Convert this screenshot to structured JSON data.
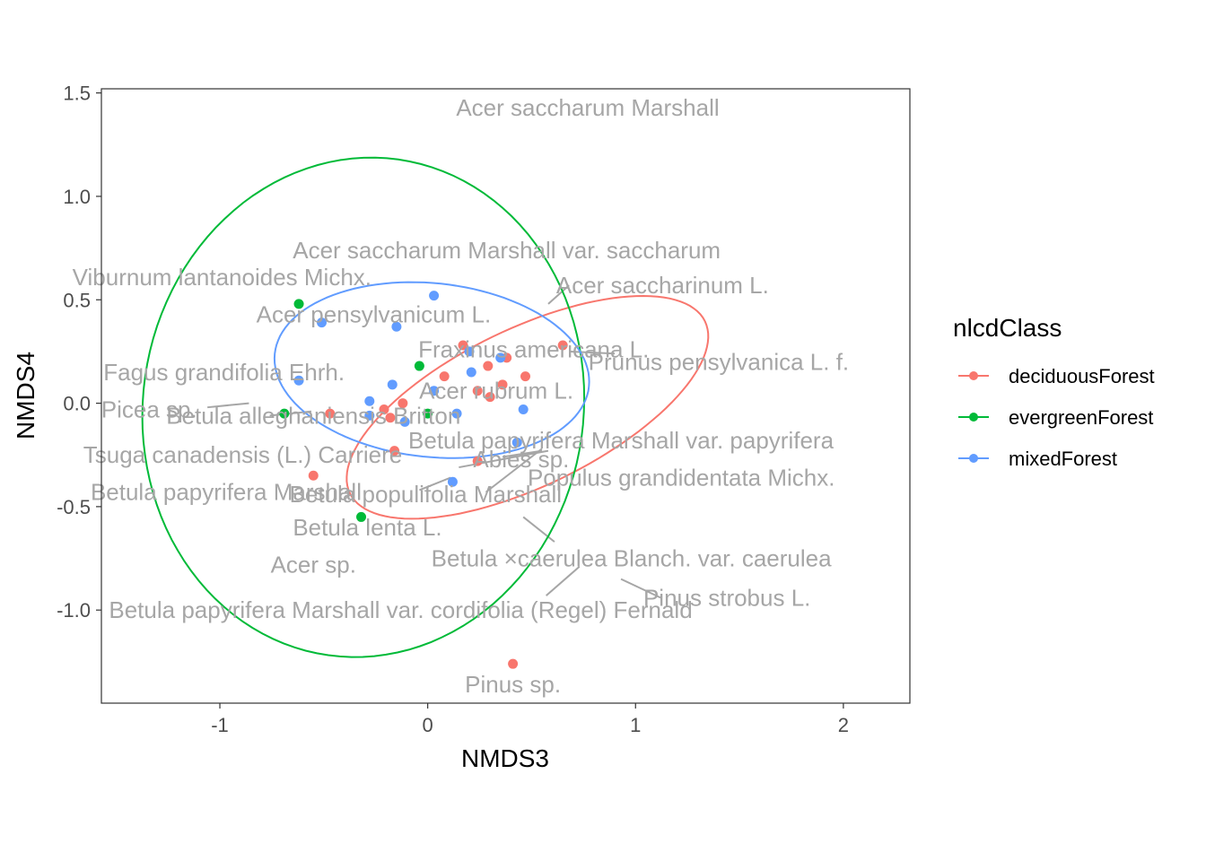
{
  "chart_data": {
    "type": "scatter",
    "xlabel": "NMDS3",
    "ylabel": "NMDS4",
    "xlim": [
      -1.57,
      2.32
    ],
    "ylim": [
      -1.45,
      1.52
    ],
    "x_ticks": [
      -1,
      0,
      1,
      2
    ],
    "x_tick_labels": [
      "-1",
      "0",
      "1",
      "2"
    ],
    "y_ticks": [
      -1.0,
      -0.5,
      0.0,
      0.5,
      1.0,
      1.5
    ],
    "y_tick_labels": [
      "-1.0",
      "-0.5",
      "0.0",
      "0.5",
      "1.0",
      "1.5"
    ],
    "grid": false,
    "legend": {
      "title": "nlcdClass",
      "position": "right",
      "entries": [
        {
          "label": "deciduousForest",
          "color": "#F8766D"
        },
        {
          "label": "evergreenForest",
          "color": "#00BA38"
        },
        {
          "label": "mixedForest",
          "color": "#619CFF"
        }
      ]
    },
    "series": [
      {
        "name": "deciduousForest",
        "color": "#F8766D",
        "points": [
          [
            0.17,
            0.28
          ],
          [
            0.38,
            0.22
          ],
          [
            0.47,
            0.13
          ],
          [
            0.29,
            0.18
          ],
          [
            0.08,
            0.13
          ],
          [
            0.36,
            0.09
          ],
          [
            0.24,
            0.06
          ],
          [
            0.3,
            0.03
          ],
          [
            -0.12,
            0.0
          ],
          [
            -0.21,
            -0.03
          ],
          [
            -0.18,
            -0.07
          ],
          [
            -0.47,
            -0.05
          ],
          [
            -0.16,
            -0.23
          ],
          [
            0.24,
            -0.28
          ],
          [
            -0.55,
            -0.35
          ],
          [
            0.41,
            -1.26
          ],
          [
            0.65,
            0.28
          ]
        ],
        "ellipse": {
          "cx": 0.48,
          "cy": -0.02,
          "rx": 0.95,
          "ry": 0.38,
          "angle_deg": 26
        }
      },
      {
        "name": "evergreenForest",
        "color": "#00BA38",
        "points": [
          [
            -0.62,
            0.48
          ],
          [
            -0.04,
            0.18
          ],
          [
            0.0,
            -0.05
          ],
          [
            -0.69,
            -0.05
          ],
          [
            -0.32,
            -0.55
          ]
        ],
        "ellipse": {
          "cx": -0.31,
          "cy": -0.02,
          "rx": 1.06,
          "ry": 1.21,
          "angle_deg": -8
        }
      },
      {
        "name": "mixedForest",
        "color": "#619CFF",
        "points": [
          [
            0.03,
            0.52
          ],
          [
            -0.51,
            0.39
          ],
          [
            -0.15,
            0.37
          ],
          [
            0.2,
            0.25
          ],
          [
            0.35,
            0.22
          ],
          [
            0.21,
            0.15
          ],
          [
            -0.62,
            0.11
          ],
          [
            -0.17,
            0.09
          ],
          [
            0.03,
            0.06
          ],
          [
            -0.28,
            0.01
          ],
          [
            -0.28,
            -0.06
          ],
          [
            -0.11,
            -0.09
          ],
          [
            0.14,
            -0.05
          ],
          [
            0.46,
            -0.03
          ],
          [
            0.43,
            -0.19
          ],
          [
            0.12,
            -0.38
          ]
        ],
        "ellipse": {
          "cx": 0.02,
          "cy": 0.16,
          "rx": 0.76,
          "ry": 0.42,
          "angle_deg": -6
        }
      }
    ],
    "annotations": [
      {
        "text": "Acer saccharum Marshall",
        "x": 0.77,
        "y": 1.43
      },
      {
        "text": "Acer saccharum Marshall var. saccharum",
        "x": 0.38,
        "y": 0.74
      },
      {
        "text": "Viburnum lantanoides Michx.",
        "x": -0.99,
        "y": 0.61
      },
      {
        "text": "Acer saccharinum L.",
        "x": 1.13,
        "y": 0.57
      },
      {
        "text": "Acer pensylvanicum L.",
        "x": -0.26,
        "y": 0.43
      },
      {
        "text": "Fraxinus americana L.",
        "x": 0.51,
        "y": 0.26
      },
      {
        "text": "Prunus pensylvanica L. f.",
        "x": 1.4,
        "y": 0.2
      },
      {
        "text": "Fagus grandifolia Ehrh.",
        "x": -0.98,
        "y": 0.15
      },
      {
        "text": "Acer rubrum L.",
        "x": 0.33,
        "y": 0.06
      },
      {
        "text": "Picea sp.",
        "x": -1.34,
        "y": -0.03
      },
      {
        "text": "Betula alleghaniensis Britton",
        "x": -0.55,
        "y": -0.06
      },
      {
        "text": "Betula papyrifera Marshall var. papyrifera",
        "x": 0.93,
        "y": -0.18
      },
      {
        "text": "Tsuga canadensis (L.) Carriere",
        "x": -0.89,
        "y": -0.25
      },
      {
        "text": "Abies sp.",
        "x": 0.45,
        "y": -0.27
      },
      {
        "text": "Populus grandidentata Michx.",
        "x": 1.22,
        "y": -0.36
      },
      {
        "text": "Betula papyrifera Marshall",
        "x": -0.97,
        "y": -0.43
      },
      {
        "text": "Betula populifolia Marshall",
        "x": -0.01,
        "y": -0.44
      },
      {
        "text": "Betula lenta L.",
        "x": -0.29,
        "y": -0.6
      },
      {
        "text": "Betula ×caerulea Blanch. var. caerulea",
        "x": 0.98,
        "y": -0.75
      },
      {
        "text": "Acer sp.",
        "x": -0.55,
        "y": -0.78
      },
      {
        "text": "Pinus strobus L.",
        "x": 1.44,
        "y": -0.94
      },
      {
        "text": "Betula papyrifera Marshall var. cordifolia (Regel) Fernald",
        "x": -0.13,
        "y": -1.0
      },
      {
        "text": "Pinus sp.",
        "x": 0.41,
        "y": -1.36
      }
    ],
    "leader_lines": [
      [
        [
          0.58,
          0.48
        ],
        [
          0.68,
          0.57
        ]
      ],
      [
        [
          0.9,
          0.24
        ],
        [
          0.68,
          0.25
        ]
      ],
      [
        [
          -1.06,
          -0.02
        ],
        [
          -0.86,
          0.0
        ]
      ],
      [
        [
          -0.56,
          -0.04
        ],
        [
          -0.76,
          -0.06
        ]
      ],
      [
        [
          0.36,
          -0.26
        ],
        [
          0.55,
          -0.23
        ]
      ],
      [
        [
          0.15,
          -0.31
        ],
        [
          0.58,
          -0.23
        ]
      ],
      [
        [
          -0.04,
          -0.42
        ],
        [
          0.11,
          -0.36
        ]
      ],
      [
        [
          0.28,
          -0.43
        ],
        [
          0.55,
          -0.22
        ]
      ],
      [
        [
          0.46,
          -0.55
        ],
        [
          0.61,
          -0.67
        ]
      ],
      [
        [
          0.57,
          -0.93
        ],
        [
          0.73,
          -0.79
        ]
      ],
      [
        [
          0.93,
          -0.85
        ],
        [
          1.12,
          -0.94
        ]
      ]
    ]
  }
}
